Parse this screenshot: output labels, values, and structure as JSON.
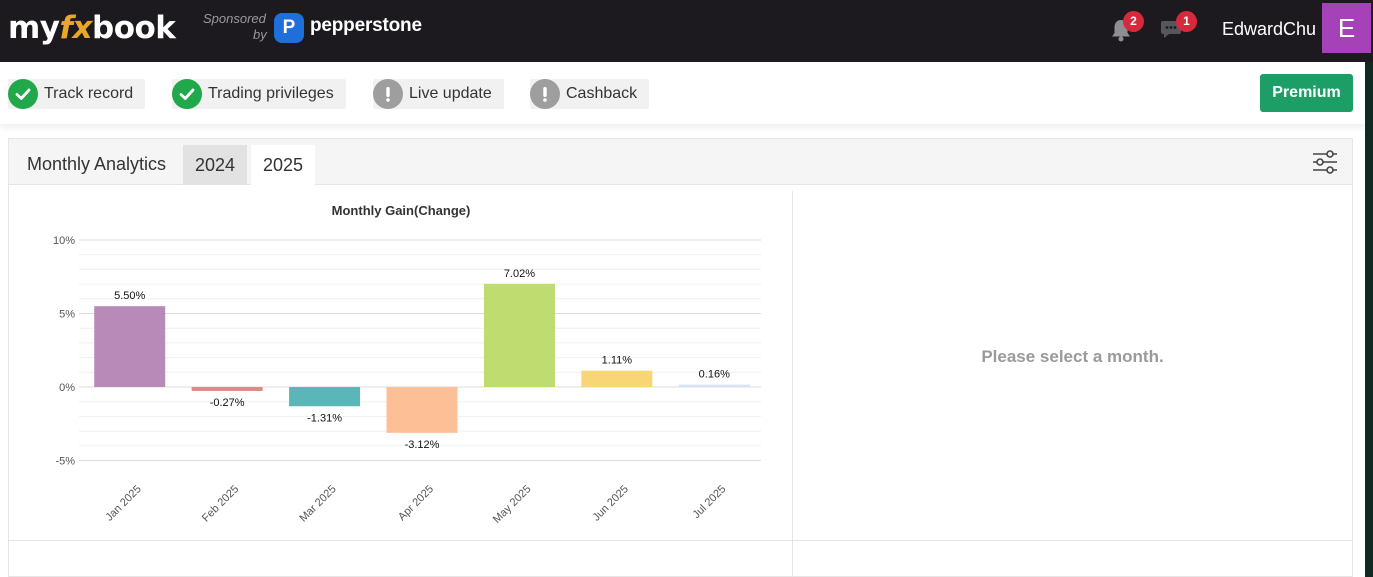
{
  "header": {
    "logo_prefix": "my",
    "logo_fx": "fx",
    "logo_suffix": "book",
    "sponsored": "Sponsored",
    "by": "by",
    "sponsor_logo_letter": "P",
    "sponsor_name": "pepperstone",
    "notifications_count": "2",
    "messages_count": "1",
    "username": "EdwardChu",
    "avatar_letter": "E"
  },
  "features": [
    {
      "label": "Track record",
      "status": "ok"
    },
    {
      "label": "Trading privileges",
      "status": "ok"
    },
    {
      "label": "Live update",
      "status": "warn"
    },
    {
      "label": "Cashback",
      "status": "warn"
    }
  ],
  "premium_label": "Premium",
  "panel": {
    "title": "Monthly Analytics",
    "tabs": [
      "2024",
      "2025"
    ],
    "active_tab": "2025",
    "empty_message": "Please select a month."
  },
  "colors": {
    "accent_green": "#1e9e67",
    "avatar": "#a542b8",
    "badge": "#d62a3c"
  },
  "chart_data": {
    "type": "bar",
    "title": "Monthly Gain(Change)",
    "categories": [
      "Jan 2025",
      "Feb 2025",
      "Mar 2025",
      "Apr 2025",
      "May 2025",
      "Jun 2025",
      "Jul 2025"
    ],
    "values": [
      5.5,
      -0.27,
      -1.31,
      -3.12,
      7.02,
      1.11,
      0.16
    ],
    "value_labels": [
      "5.50%",
      "-0.27%",
      "-1.31%",
      "-3.12%",
      "7.02%",
      "1.11%",
      "0.16%"
    ],
    "bar_colors": [
      "#b88ab7",
      "#e08a86",
      "#5bb6b8",
      "#fdbf96",
      "#bedc6f",
      "#f8d675",
      "#d6e3f5"
    ],
    "yticks": [
      10,
      5,
      0,
      -5
    ],
    "ytick_labels": [
      "10%",
      "5%",
      "0%",
      "-5%"
    ],
    "ylim": [
      -5,
      10
    ],
    "grid": true,
    "xlabel": "",
    "ylabel": ""
  }
}
